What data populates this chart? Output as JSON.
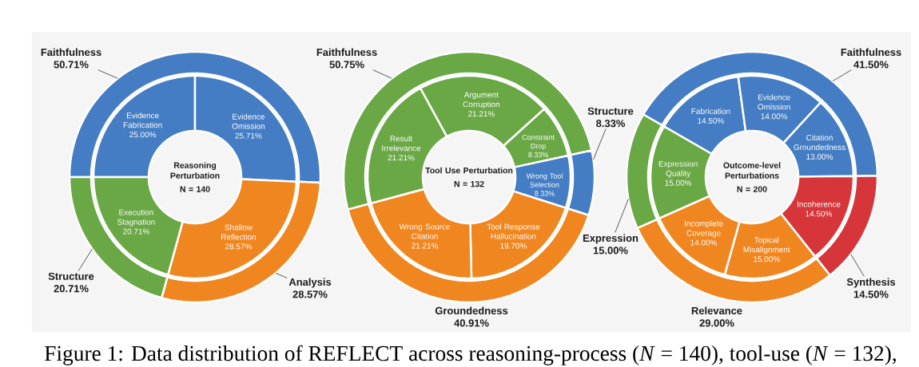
{
  "chart_data": [
    {
      "type": "donut",
      "categories": [
        "Faithfulness",
        "Analysis",
        "Structure"
      ],
      "values": [
        50.71,
        28.57,
        20.71
      ],
      "colors": [
        "#447dc4",
        "#f0861f",
        "#6aa846"
      ],
      "value_labels": [
        "50.71%",
        "28.57%",
        "20.71%"
      ]
    },
    {
      "type": "donut",
      "title": "Reasoning Perturbation",
      "subtitle": "N = 140",
      "categories": [
        "Evidence Fabrication",
        "Evidence Omission",
        "Shallow Reflection",
        "Execution Stagnation"
      ],
      "values": [
        25.0,
        25.71,
        28.57,
        20.71
      ],
      "colors": [
        "#447dc4",
        "#447dc4",
        "#f0861f",
        "#6aa846"
      ],
      "value_labels": [
        "25.00%",
        "25.71%",
        "28.57%",
        "20.71%"
      ]
    },
    {
      "type": "donut",
      "categories": [
        "Faithfulness",
        "Structure",
        "Groundedness"
      ],
      "values": [
        50.75,
        8.33,
        40.91
      ],
      "colors": [
        "#6aa846",
        "#447dc4",
        "#f0861f"
      ],
      "value_labels": [
        "50.75%",
        "8.33%",
        "40.91%"
      ]
    },
    {
      "type": "donut",
      "title": "Tool Use Perturbation",
      "subtitle": "N = 132",
      "categories": [
        "Result Irrelevance",
        "Argument Corruption",
        "Constraint Drop",
        "Wrong Tool Selection",
        "Tool Response Hallucination",
        "Wrong Source Citation"
      ],
      "values": [
        21.21,
        21.21,
        8.33,
        8.33,
        19.7,
        21.21
      ],
      "colors": [
        "#6aa846",
        "#6aa846",
        "#6aa846",
        "#447dc4",
        "#f0861f",
        "#f0861f"
      ],
      "value_labels": [
        "21.21%",
        "21.21%",
        "8.33%",
        "8.33%",
        "19.70%",
        "21.21%"
      ]
    },
    {
      "type": "donut",
      "categories": [
        "Faithfulness",
        "Synthesis",
        "Relevance",
        "Expression"
      ],
      "values": [
        41.5,
        14.5,
        29.0,
        15.0
      ],
      "colors": [
        "#447dc4",
        "#d6363a",
        "#f0861f",
        "#6aa846"
      ],
      "value_labels": [
        "41.50%",
        "14.50%",
        "29.00%",
        "15.00%"
      ]
    },
    {
      "type": "donut",
      "title": "Outcome-level Perturbations",
      "subtitle": "N = 200",
      "categories": [
        "Fabrication",
        "Evidence Omission",
        "Citation Groundedness",
        "Incoherence",
        "Topical Misalignment",
        "Incomplete Coverage",
        "Expression Quality"
      ],
      "values": [
        14.5,
        14.0,
        13.0,
        14.5,
        15.0,
        14.0,
        15.0
      ],
      "colors": [
        "#447dc4",
        "#447dc4",
        "#447dc4",
        "#d6363a",
        "#f0861f",
        "#f0861f",
        "#6aa846"
      ],
      "value_labels": [
        "14.50%",
        "14.00%",
        "13.00%",
        "14.50%",
        "15.00%",
        "14.00%",
        "15.00%"
      ],
      "annotations": [
        "Figure 1: Data distribution of REFLECT across reasoning-process (*N* = 140), tool-use (*N* = 132),"
      ]
    }
  ]
}
